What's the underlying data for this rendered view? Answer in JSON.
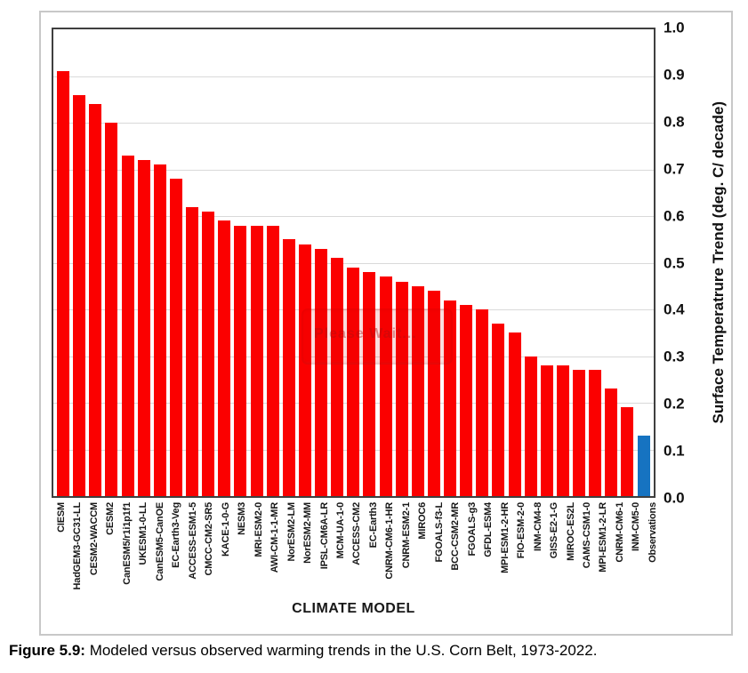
{
  "figure": {
    "caption_label": "Figure 5.9:",
    "caption_text": " Modeled versus observed warming trends in the U.S. Corn Belt, 1973-2022."
  },
  "watermark": {
    "text": "Please Wait..."
  },
  "colors": {
    "model_bar": "#fb0000",
    "observation_bar": "#1673c1",
    "gridline": "#d9d9d9",
    "plot_border": "#3f3f3f",
    "frame_border": "#c8c8c8"
  },
  "chart_data": {
    "type": "bar",
    "title": "",
    "xlabel": "CLIMATE MODEL",
    "ylabel": "Surface Temperatrure Trend (deg. C/ decade)",
    "ylim": [
      0,
      1.0
    ],
    "yticks": [
      "1.0",
      "0.9",
      "0.8",
      "0.7",
      "0.6",
      "0.5",
      "0.4",
      "0.3",
      "0.2",
      "0.1",
      "0.0"
    ],
    "grid": true,
    "legend_position": "none",
    "highlight_category": "Observations",
    "categories": [
      "CIESM",
      "HadGEM3-GC31-LL",
      "CESM2-WACCM",
      "CESM2",
      "CanESM5/r1i1p1f1",
      "UKESM1-0-LL",
      "CanESM5-CanOE",
      "EC-Earth3-Veg",
      "ACCESS-ESM1-5",
      "CMCC-CM2-SR5",
      "KACE-1-0-G",
      "NESM3",
      "MRI-ESM2-0",
      "AWI-CM-1-1-MR",
      "NorESM2-LM",
      "NorESM2-MM",
      "IPSL-CM6A-LR",
      "MCM-UA-1-0",
      "ACCESS-CM2",
      "EC-Earth3",
      "CNRM-CM6-1-HR",
      "CNRM-ESM2-1",
      "MIROC6",
      "FGOALS-f3-L",
      "BCC-CSM2-MR",
      "FGOALS-g3",
      "GFDL-ESM4",
      "MPI-ESM1-2-HR",
      "FIO-ESM-2-0",
      "INM-CM4-8",
      "GISS-E2-1-G",
      "MIROC-ES2L",
      "CAMS-CSM1-0",
      "MPI-ESM1-2-LR",
      "CNRM-CM6-1",
      "INM-CM5-0",
      "Observations"
    ],
    "values": [
      0.91,
      0.86,
      0.84,
      0.8,
      0.73,
      0.72,
      0.71,
      0.68,
      0.62,
      0.61,
      0.59,
      0.58,
      0.58,
      0.58,
      0.55,
      0.54,
      0.53,
      0.51,
      0.49,
      0.48,
      0.47,
      0.46,
      0.45,
      0.44,
      0.42,
      0.41,
      0.4,
      0.37,
      0.35,
      0.3,
      0.28,
      0.28,
      0.27,
      0.27,
      0.23,
      0.19,
      0.13
    ]
  }
}
